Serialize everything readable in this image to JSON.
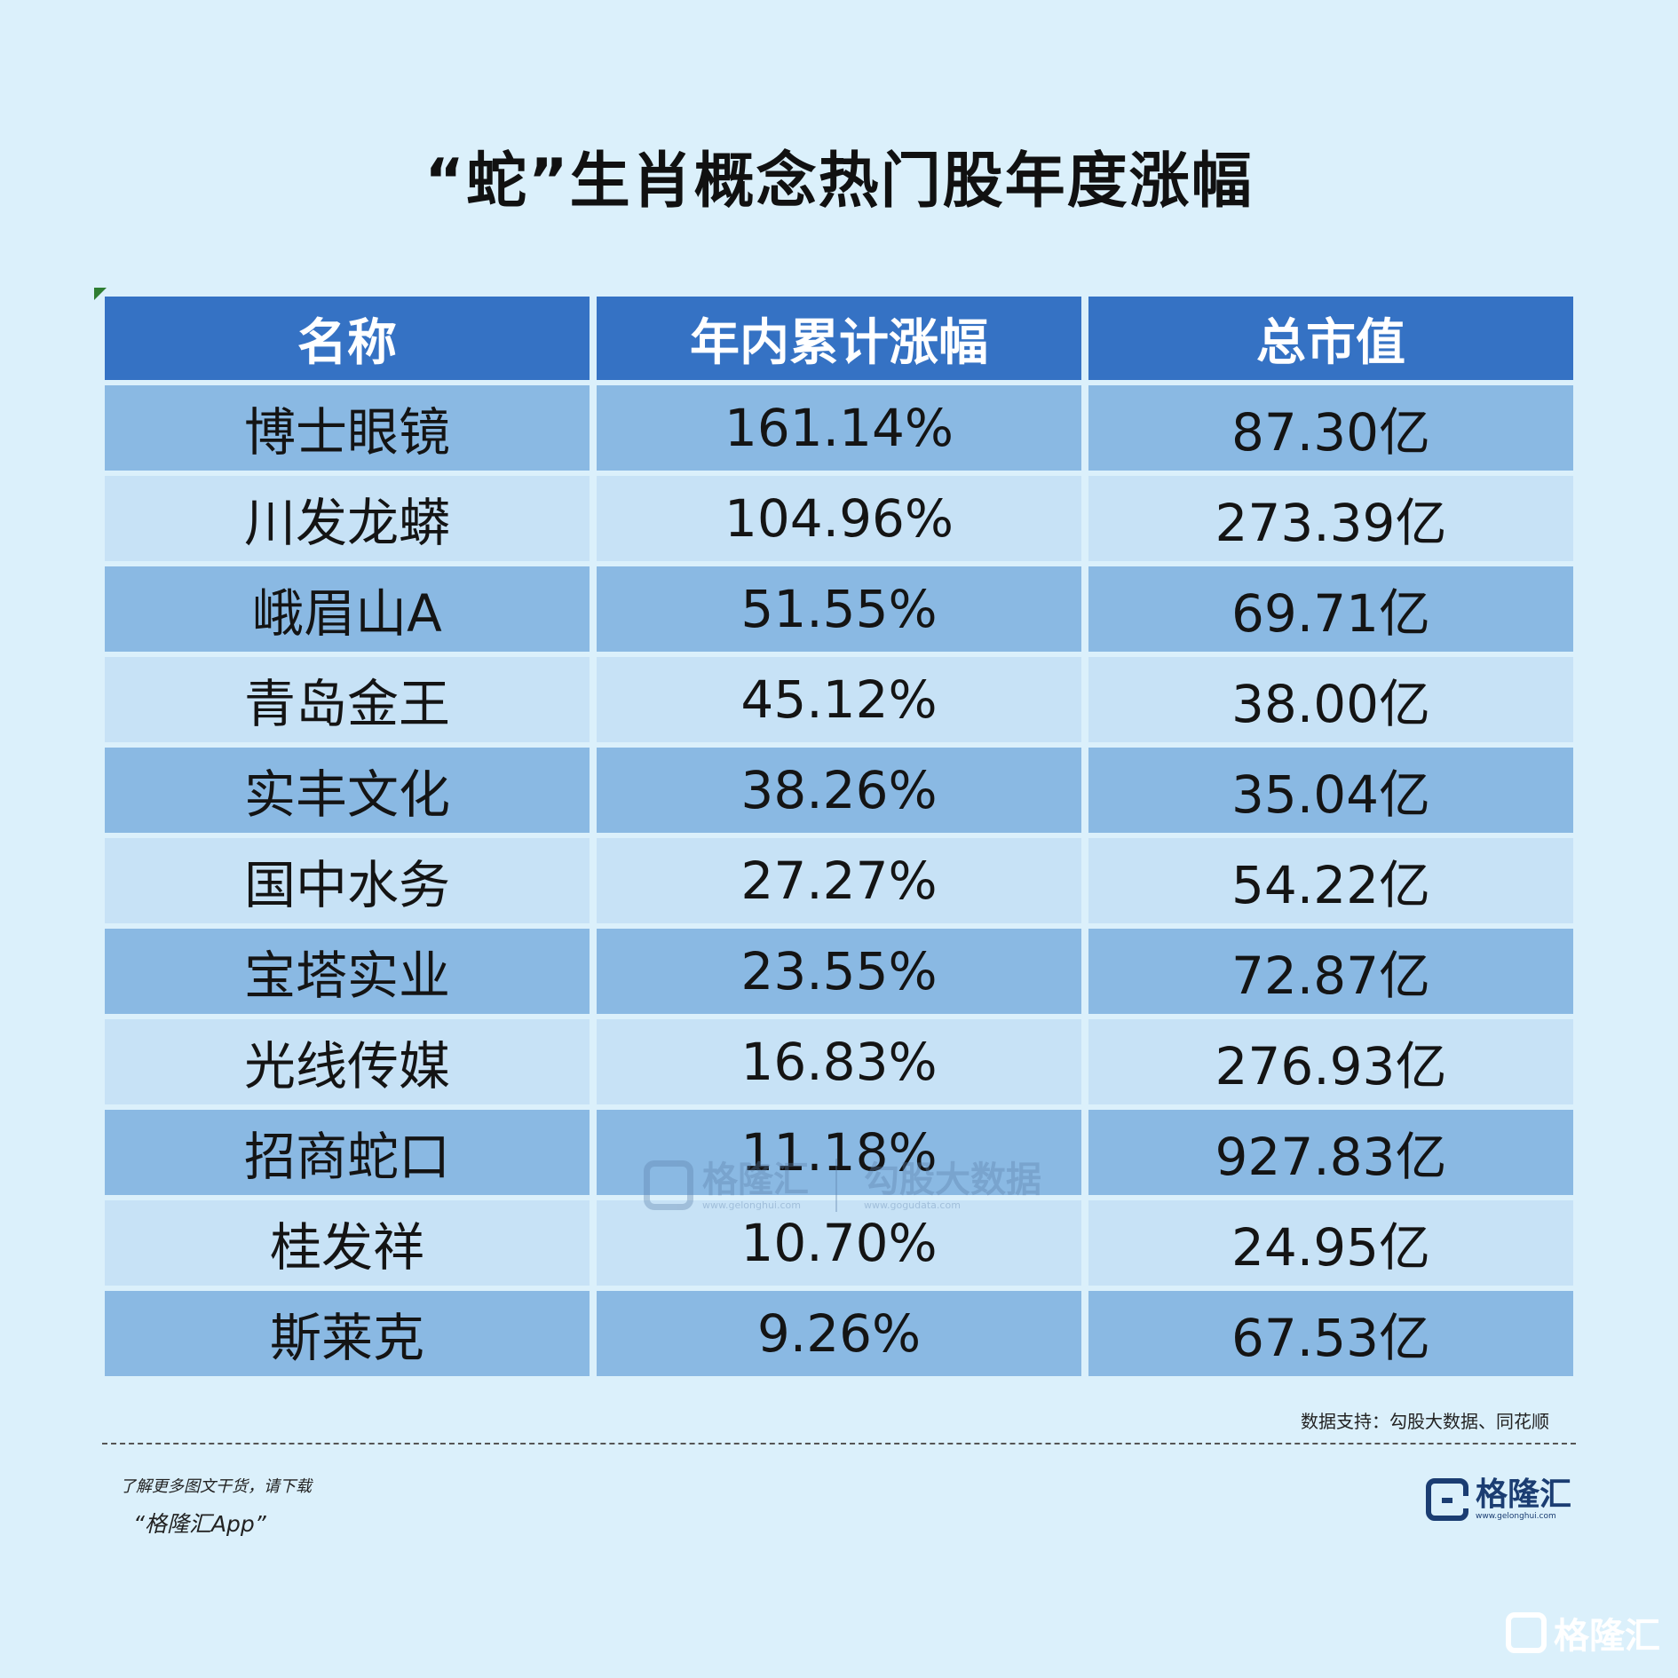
{
  "title": "“蛇”生肖概念热门股年度涨幅",
  "chart_data": {
    "type": "table",
    "columns": [
      "名称",
      "年内累计涨幅",
      "总市值"
    ],
    "rows": [
      [
        "博士眼镜",
        "161.14%",
        "87.30亿"
      ],
      [
        "川发龙蟒",
        "104.96%",
        "273.39亿"
      ],
      [
        "峨眉山A",
        "51.55%",
        "69.71亿"
      ],
      [
        "青岛金王",
        "45.12%",
        "38.00亿"
      ],
      [
        "实丰文化",
        "38.26%",
        "35.04亿"
      ],
      [
        "国中水务",
        "27.27%",
        "54.22亿"
      ],
      [
        "宝塔实业",
        "23.55%",
        "72.87亿"
      ],
      [
        "光线传媒",
        "16.83%",
        "276.93亿"
      ],
      [
        "招商蛇口",
        "11.18%",
        "927.83亿"
      ],
      [
        "桂发祥",
        "10.70%",
        "24.95亿"
      ],
      [
        "斯莱克",
        "9.26%",
        "67.53亿"
      ]
    ]
  },
  "source": "数据支持：勾股大数据、同花顺",
  "promo": {
    "line1": "了解更多图文干货，请下载",
    "line2": "“格隆汇App”"
  },
  "logo": {
    "name": "格隆汇",
    "url": "www.gelonghui.com"
  },
  "watermark": {
    "brand1": "格隆汇",
    "brand1_url": "www.gelonghui.com",
    "brand2": "勾股大数据",
    "brand2_url": "www.gogudata.com"
  },
  "corner_logo": {
    "name": "格隆汇"
  },
  "colors": {
    "background": "#dbf0fb",
    "header": "#3572c4",
    "row_odd": "#8ab9e3",
    "row_even": "#c7e2f6"
  }
}
